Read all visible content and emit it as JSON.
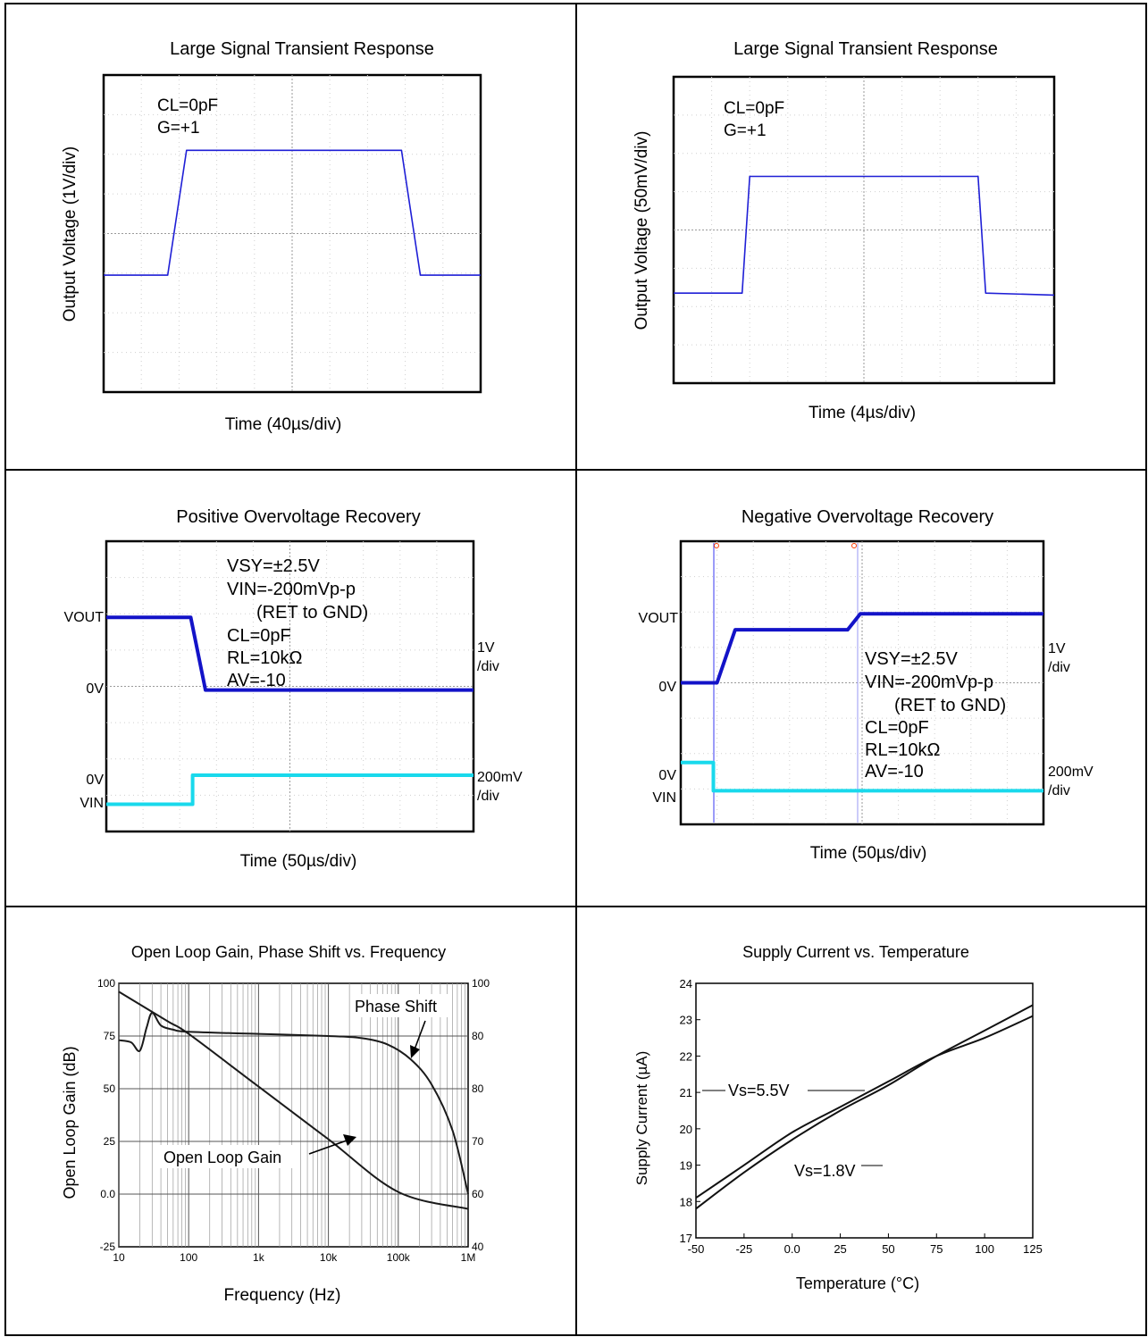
{
  "chart_data": [
    {
      "type": "line",
      "title": "Large Signal Transient Response",
      "xlabel": "Time (40µs/div)",
      "ylabel": "Output Voltage (1V/div)",
      "annotations": [
        "CL=0pF",
        "G=+1"
      ],
      "grid": true,
      "xlim": [
        0,
        10
      ],
      "ylim": [
        0,
        8
      ],
      "series": [
        {
          "name": "",
          "color": "#1f1fd6",
          "points": [
            [
              0,
              2.95
            ],
            [
              1.7,
              2.95
            ],
            [
              2.2,
              6.1
            ],
            [
              7.9,
              6.1
            ],
            [
              8.4,
              2.95
            ],
            [
              10,
              2.95
            ]
          ]
        }
      ]
    },
    {
      "type": "line",
      "title": "Large Signal Transient Response",
      "xlabel": "Time (4µs/div)",
      "ylabel": "Output Voltage (50mV/div)",
      "annotations": [
        "CL=0pF",
        "G=+1"
      ],
      "grid": true,
      "xlim": [
        0,
        10
      ],
      "ylim": [
        0,
        8
      ],
      "series": [
        {
          "name": "",
          "color": "#1f1fd6",
          "points": [
            [
              0,
              2.35
            ],
            [
              1.8,
              2.35
            ],
            [
              2.0,
              5.4
            ],
            [
              8.0,
              5.4
            ],
            [
              8.2,
              2.35
            ],
            [
              10,
              2.3
            ]
          ]
        }
      ]
    },
    {
      "type": "line",
      "title": "Positive Overvoltage Recovery",
      "xlabel": "Time (50µs/div)",
      "annotations": [
        "VSY=±2.5V",
        "VIN=-200mVp-p",
        "(RET to GND)",
        "CL=0pF",
        "RL=10kΩ",
        "AV=-10"
      ],
      "left_labels": [
        "VOUT",
        "0V",
        "0V",
        "VIN"
      ],
      "right_labels": [
        "1V",
        "/div",
        "200mV",
        "/div"
      ],
      "grid": true,
      "xlim": [
        0,
        10
      ],
      "ylim": [
        0,
        8
      ],
      "series": [
        {
          "name": "VOUT",
          "color": "#1313c8",
          "points": [
            [
              0,
              5.9
            ],
            [
              2.3,
              5.9
            ],
            [
              2.7,
              3.9
            ],
            [
              10,
              3.9
            ]
          ]
        },
        {
          "name": "VIN",
          "color": "#19d9ec",
          "points": [
            [
              0,
              0.75
            ],
            [
              2.35,
              0.75
            ],
            [
              2.35,
              1.55
            ],
            [
              10,
              1.55
            ]
          ]
        }
      ]
    },
    {
      "type": "line",
      "title": "Negative Overvoltage Recovery",
      "xlabel": "Time (50µs/div)",
      "annotations": [
        "VSY=±2.5V",
        "VIN=-200mVp-p",
        "(RET to GND)",
        "CL=0pF",
        "RL=10kΩ",
        "AV=-10"
      ],
      "left_labels": [
        "VOUT",
        "0V",
        "0V",
        "VIN"
      ],
      "right_labels": [
        "1V",
        "/div",
        "200mV",
        "/div"
      ],
      "grid": true,
      "xlim": [
        0,
        10
      ],
      "ylim": [
        0,
        8
      ],
      "series": [
        {
          "name": "VOUT",
          "color": "#1313c8",
          "points": [
            [
              0,
              4.0
            ],
            [
              1.0,
              4.0
            ],
            [
              1.5,
              5.5
            ],
            [
              4.6,
              5.5
            ],
            [
              4.95,
              5.95
            ],
            [
              10,
              5.95
            ]
          ]
        },
        {
          "name": "VIN",
          "color": "#19d9ec",
          "points": [
            [
              0,
              1.75
            ],
            [
              0.9,
              1.75
            ],
            [
              0.9,
              0.95
            ],
            [
              10,
              0.95
            ]
          ]
        }
      ]
    },
    {
      "type": "line",
      "title": "Open Loop Gain, Phase Shift vs. Frequency",
      "xlabel": "Frequency (Hz)",
      "ylabel": "Open Loop Gain (dB)",
      "xscale": "log",
      "xlim": [
        10,
        1000000
      ],
      "xticks": [
        "10",
        "100",
        "1k",
        "10k",
        "100k",
        "1M"
      ],
      "ylim": [
        -25,
        100
      ],
      "yticks": [
        "-25",
        "0.0",
        "25",
        "50",
        "75",
        "100"
      ],
      "y2ticks": [
        "40",
        "60",
        "70",
        "80",
        "80",
        "100"
      ],
      "grid": true,
      "series": [
        {
          "name": "Open Loop Gain",
          "color": "#1a1a1a",
          "points": [
            [
              10,
              96
            ],
            [
              50,
              82
            ],
            [
              100,
              76
            ],
            [
              1000,
              51
            ],
            [
              10000,
              26
            ],
            [
              100000,
              1
            ],
            [
              1000000,
              -7
            ]
          ]
        },
        {
          "name": "Phase Shift",
          "color": "#1a1a1a",
          "points": [
            [
              10,
              73
            ],
            [
              15,
              72
            ],
            [
              20,
              68
            ],
            [
              25,
              79
            ],
            [
              30,
              86
            ],
            [
              40,
              80
            ],
            [
              60,
              78
            ],
            [
              100,
              77
            ],
            [
              1000,
              76
            ],
            [
              10000,
              75
            ],
            [
              30000,
              74
            ],
            [
              70000,
              71
            ],
            [
              150000,
              64
            ],
            [
              300000,
              52
            ],
            [
              600000,
              30
            ],
            [
              1000000,
              0
            ]
          ]
        }
      ],
      "labels": [
        "Phase Shift",
        "Open Loop Gain"
      ]
    },
    {
      "type": "line",
      "title": "Supply Current vs. Temperature",
      "xlabel": "Temperature (°C)",
      "ylabel": "Supply Current (µA)",
      "xlim": [
        -50,
        125
      ],
      "xticks": [
        "-50",
        "-25",
        "0.0",
        "25",
        "50",
        "75",
        "100",
        "125"
      ],
      "ylim": [
        17,
        24
      ],
      "yticks": [
        "17",
        "18",
        "19",
        "20",
        "21",
        "22",
        "23",
        "24"
      ],
      "grid": false,
      "series": [
        {
          "name": "Vs=5.5V",
          "color": "#111111",
          "points": [
            [
              -50,
              18.1
            ],
            [
              -25,
              19.0
            ],
            [
              0,
              19.9
            ],
            [
              25,
              20.6
            ],
            [
              50,
              21.3
            ],
            [
              75,
              22.0
            ],
            [
              100,
              22.5
            ],
            [
              125,
              23.1
            ]
          ]
        },
        {
          "name": "Vs=1.8V",
          "color": "#111111",
          "points": [
            [
              -50,
              17.8
            ],
            [
              -25,
              18.8
            ],
            [
              0,
              19.7
            ],
            [
              25,
              20.5
            ],
            [
              50,
              21.2
            ],
            [
              75,
              22.0
            ],
            [
              100,
              22.7
            ],
            [
              125,
              23.4
            ]
          ]
        }
      ],
      "labels": [
        "Vs=5.5V",
        "Vs=1.8V"
      ]
    }
  ]
}
